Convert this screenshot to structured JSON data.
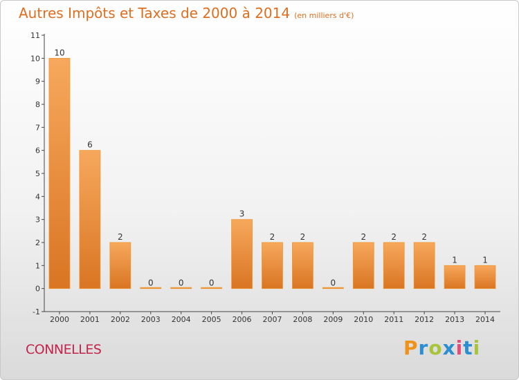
{
  "title": "Autres Impôts et Taxes de 2000 à 2014",
  "subtitle": "(en milliers d'€)",
  "commune": "CONNELLES",
  "logo": {
    "text": "Proxiti",
    "colors": [
      "#f0921a",
      "#2b8ed1",
      "#a7c43b",
      "#2b8ed1",
      "#e54c7a",
      "#2b8ed1",
      "#a7c43b"
    ]
  },
  "colors": {
    "bar_top": "#f7a85c",
    "bar_bottom": "#d97523",
    "bar_edge": "#f0962f",
    "title": "#df6d1d",
    "commune": "#c4234c"
  },
  "chart_data": {
    "type": "bar",
    "title": "Autres Impôts et Taxes de 2000 à 2014",
    "subtitle": "(en milliers d'€)",
    "categories": [
      "2000",
      "2001",
      "2002",
      "2003",
      "2004",
      "2005",
      "2006",
      "2007",
      "2008",
      "2009",
      "2010",
      "2011",
      "2012",
      "2013",
      "2014"
    ],
    "values": [
      10,
      6,
      2,
      0,
      0,
      0,
      3,
      2,
      2,
      0,
      2,
      2,
      2,
      1,
      1
    ],
    "data_labels": [
      "10",
      "6",
      "2",
      "0",
      "0",
      "0",
      "3",
      "2",
      "2",
      "0",
      "2",
      "2",
      "2",
      "1",
      "1"
    ],
    "y_ticks": [
      -1,
      0,
      1,
      2,
      3,
      4,
      5,
      6,
      7,
      8,
      9,
      10,
      11
    ],
    "y_tick_labels": [
      "-1",
      "0",
      "1",
      "2",
      "3",
      "4",
      "5",
      "6",
      "7",
      "8",
      "9",
      "10",
      "11"
    ],
    "ylim": [
      -1,
      11
    ],
    "grid": false,
    "xlabel": "",
    "ylabel": ""
  }
}
